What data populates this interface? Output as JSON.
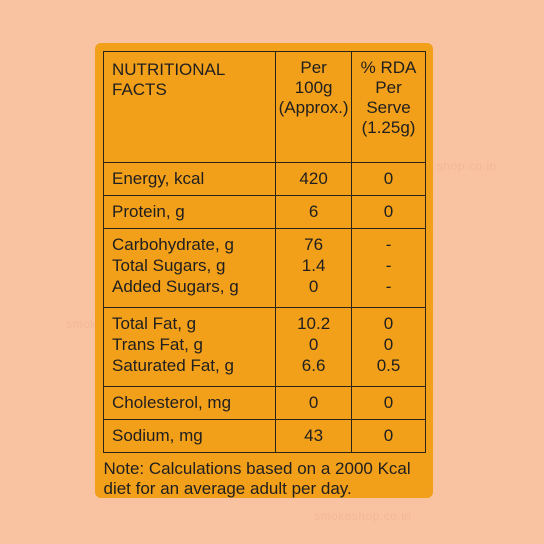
{
  "header": {
    "nutrient": "NUTRITIONAL\nFACTS",
    "per100": "Per\n100g\n(Approx.)",
    "rda": "% RDA\nPer\nServe\n(1.25g)"
  },
  "rows": [
    {
      "labels": [
        "Energy, kcal"
      ],
      "per100": [
        "420"
      ],
      "rda": [
        "0"
      ]
    },
    {
      "labels": [
        "Protein, g"
      ],
      "per100": [
        "6"
      ],
      "rda": [
        "0"
      ]
    },
    {
      "labels": [
        "Carbohydrate, g",
        "Total Sugars, g",
        "Added Sugars, g"
      ],
      "per100": [
        "76",
        "1.4",
        "0"
      ],
      "rda": [
        "-",
        "-",
        "-"
      ]
    },
    {
      "labels": [
        "Total Fat, g",
        "Trans Fat, g",
        "Saturated Fat, g"
      ],
      "per100": [
        "10.2",
        "0",
        "6.6"
      ],
      "rda": [
        "0",
        "0",
        "0.5"
      ]
    },
    {
      "labels": [
        "Cholesterol, mg"
      ],
      "per100": [
        "0"
      ],
      "rda": [
        "0"
      ]
    },
    {
      "labels": [
        "Sodium, mg"
      ],
      "per100": [
        "43"
      ],
      "rda": [
        "0"
      ]
    }
  ],
  "note": "Note: Calculations based on a 2000 Kcal\ndiet for an average adult per day.",
  "watermarks": [
    "shop.co.in",
    "smok",
    "smokeshop.co.in"
  ],
  "colors": {
    "background": "#f9c2a1",
    "panel": "#f29f1a",
    "border": "#2b2418"
  }
}
